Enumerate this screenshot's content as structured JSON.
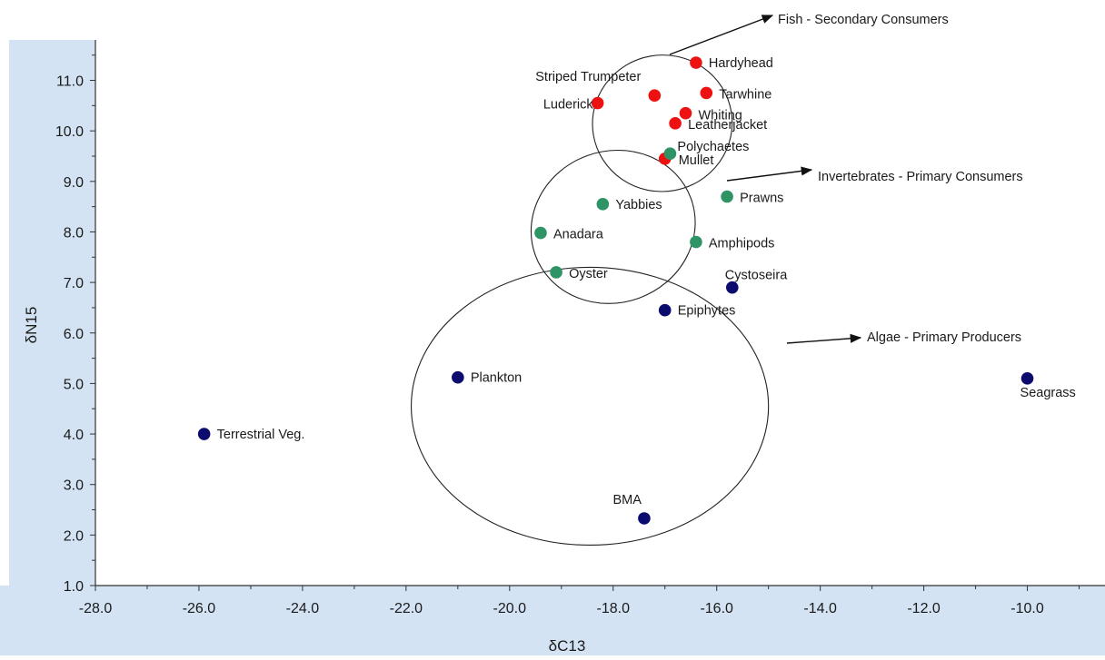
{
  "chart_data": {
    "type": "scatter",
    "xlabel": "δC13",
    "ylabel": "δN15",
    "xlim": [
      -28,
      -8.5
    ],
    "ylim": [
      1,
      11.8
    ],
    "x_ticks": [
      -28,
      -26,
      -24,
      -22,
      -20,
      -18,
      -16,
      -14,
      -12,
      -10
    ],
    "x_tick_labels": [
      "-28.0",
      "-26.0",
      "-24.0",
      "-22.0",
      "-20.0",
      "-18.0",
      "-16.0",
      "-14.0",
      "-12.0",
      "-10.0"
    ],
    "y_ticks": [
      1,
      2,
      3,
      4,
      5,
      6,
      7,
      8,
      9,
      10,
      11
    ],
    "y_tick_labels": [
      "1.0",
      "2.0",
      "3.0",
      "4.0",
      "5.0",
      "6.0",
      "7.0",
      "8.0",
      "9.0",
      "10.0",
      "11.0"
    ],
    "grid": false,
    "colors": {
      "fish": "#ee1111",
      "invertebrate": "#2e9466",
      "algae": "#0b0c6e",
      "plot_border": "#d3e3f3"
    },
    "points": [
      {
        "label": "Hardyhead",
        "x": -16.4,
        "y": 11.35,
        "group": "fish"
      },
      {
        "label": "Striped Trumpeter",
        "x": -17.2,
        "y": 10.7,
        "group": "fish"
      },
      {
        "label": "Tarwhine",
        "x": -16.2,
        "y": 10.75,
        "group": "fish"
      },
      {
        "label": "Luderick",
        "x": -18.3,
        "y": 10.55,
        "group": "fish"
      },
      {
        "label": "Whiting",
        "x": -16.6,
        "y": 10.35,
        "group": "fish"
      },
      {
        "label": "Leatherjacket",
        "x": -16.8,
        "y": 10.15,
        "group": "fish"
      },
      {
        "label": "Mullet",
        "x": -17.0,
        "y": 9.45,
        "group": "fish"
      },
      {
        "label": "Polychaetes",
        "x": -16.9,
        "y": 9.55,
        "group": "invertebrate"
      },
      {
        "label": "Prawns",
        "x": -15.8,
        "y": 8.7,
        "group": "invertebrate"
      },
      {
        "label": "Yabbies",
        "x": -18.2,
        "y": 8.55,
        "group": "invertebrate"
      },
      {
        "label": "Anadara",
        "x": -19.4,
        "y": 7.98,
        "group": "invertebrate"
      },
      {
        "label": "Amphipods",
        "x": -16.4,
        "y": 7.8,
        "group": "invertebrate"
      },
      {
        "label": "Oyster",
        "x": -19.1,
        "y": 7.2,
        "group": "invertebrate"
      },
      {
        "label": "Cystoseira",
        "x": -15.7,
        "y": 6.9,
        "group": "algae"
      },
      {
        "label": "Epiphytes",
        "x": -17.0,
        "y": 6.45,
        "group": "algae"
      },
      {
        "label": "Plankton",
        "x": -21.0,
        "y": 5.12,
        "group": "algae"
      },
      {
        "label": "Seagrass",
        "x": -10.0,
        "y": 5.1,
        "group": "algae"
      },
      {
        "label": "Terrestrial Veg.",
        "x": -25.9,
        "y": 4.0,
        "group": "algae"
      },
      {
        "label": "BMA",
        "x": -17.4,
        "y": 2.33,
        "group": "algae"
      }
    ],
    "annotations": [
      {
        "label": "Fish - Secondary Consumers",
        "group": "fish"
      },
      {
        "label": "Invertebrates - Primary Consumers",
        "group": "invertebrate"
      },
      {
        "label": "Algae - Primary Producers",
        "group": "algae"
      }
    ],
    "ellipses": [
      {
        "group": "fish",
        "cx": -17.05,
        "cy": 10.15,
        "rx": 1.35,
        "ry": 1.35,
        "rotate": -10
      },
      {
        "group": "invertebrate",
        "cx": -18.0,
        "cy": 8.1,
        "rx": 1.6,
        "ry": 1.5,
        "rotate": -20
      },
      {
        "group": "algae",
        "cx": -18.45,
        "cy": 4.55,
        "rx": 3.45,
        "ry": 2.75,
        "rotate": 0
      }
    ]
  }
}
